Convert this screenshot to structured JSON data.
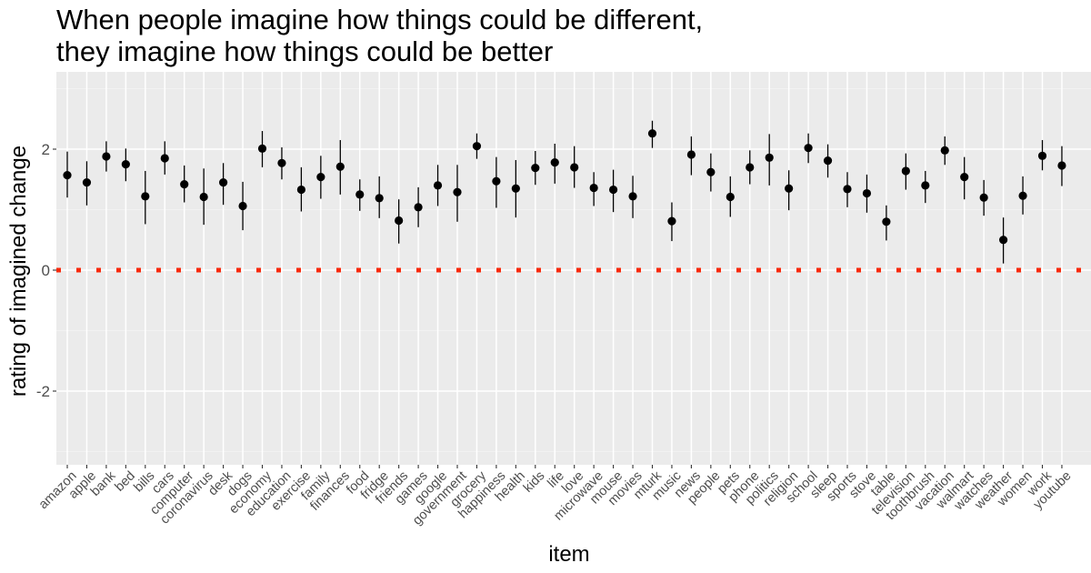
{
  "chart_data": {
    "type": "scatter",
    "title_lines": [
      "When people imagine how things could be different,",
      "they imagine how things could be better"
    ],
    "xlabel": "item",
    "ylabel": "rating of imagined change",
    "ylim": [
      -3.2,
      3.2
    ],
    "y_ticks": [
      -2,
      0,
      2
    ],
    "y_tick_labels": [
      "-2",
      "0",
      "2"
    ],
    "grid": true,
    "reference_line": {
      "y": 0,
      "style": "dotted",
      "color": "#f8290b"
    },
    "point_color": "#000000",
    "panel_background": "#ebebeb",
    "categories": [
      "amazon",
      "apple",
      "bank",
      "bed",
      "bills",
      "cars",
      "computer",
      "coronavirus",
      "desk",
      "dogs",
      "economy",
      "education",
      "exercise",
      "family",
      "finances",
      "food",
      "fridge",
      "friends",
      "games",
      "google",
      "government",
      "grocery",
      "happiness",
      "health",
      "kids",
      "life",
      "love",
      "microwave",
      "mouse",
      "movies",
      "mturk",
      "music",
      "news",
      "people",
      "pets",
      "phone",
      "politics",
      "religion",
      "school",
      "sleep",
      "sports",
      "stove",
      "table",
      "television",
      "toothbrush",
      "vacation",
      "walmart",
      "watches",
      "weather",
      "women",
      "work",
      "youtube"
    ],
    "values": [
      1.57,
      1.45,
      1.88,
      1.75,
      1.22,
      1.85,
      1.42,
      1.21,
      1.45,
      1.06,
      2.01,
      1.77,
      1.33,
      1.54,
      1.71,
      1.25,
      1.19,
      0.82,
      1.04,
      1.4,
      1.29,
      2.05,
      1.47,
      1.35,
      1.69,
      1.78,
      1.7,
      1.36,
      1.33,
      1.22,
      2.26,
      0.81,
      1.91,
      1.62,
      1.21,
      1.7,
      1.86,
      1.35,
      2.02,
      1.81,
      1.34,
      1.27,
      0.8,
      1.64,
      1.4,
      1.98,
      1.54,
      1.2,
      0.5,
      1.23,
      1.89,
      1.73
    ],
    "error_low": [
      1.2,
      1.07,
      1.63,
      1.47,
      0.76,
      1.58,
      1.12,
      0.75,
      1.08,
      0.66,
      1.7,
      1.5,
      0.97,
      1.18,
      1.25,
      0.98,
      0.86,
      0.44,
      0.71,
      1.06,
      0.8,
      1.84,
      1.03,
      0.87,
      1.41,
      1.43,
      1.36,
      1.06,
      0.96,
      0.86,
      2.02,
      0.48,
      1.57,
      1.3,
      0.88,
      1.42,
      1.4,
      0.99,
      1.77,
      1.53,
      1.04,
      0.95,
      0.49,
      1.33,
      1.11,
      1.74,
      1.17,
      0.9,
      0.11,
      0.92,
      1.65,
      1.39
    ],
    "error_high": [
      1.96,
      1.8,
      2.13,
      2.01,
      1.64,
      2.13,
      1.73,
      1.68,
      1.77,
      1.46,
      2.3,
      2.03,
      1.7,
      1.89,
      2.15,
      1.5,
      1.55,
      1.17,
      1.37,
      1.74,
      1.74,
      2.26,
      1.87,
      1.82,
      1.97,
      2.09,
      2.05,
      1.62,
      1.66,
      1.56,
      2.47,
      1.12,
      2.21,
      1.93,
      1.55,
      1.98,
      2.25,
      1.65,
      2.26,
      2.08,
      1.62,
      1.58,
      1.07,
      1.93,
      1.64,
      2.21,
      1.87,
      1.49,
      0.87,
      1.55,
      2.15,
      2.05
    ]
  }
}
